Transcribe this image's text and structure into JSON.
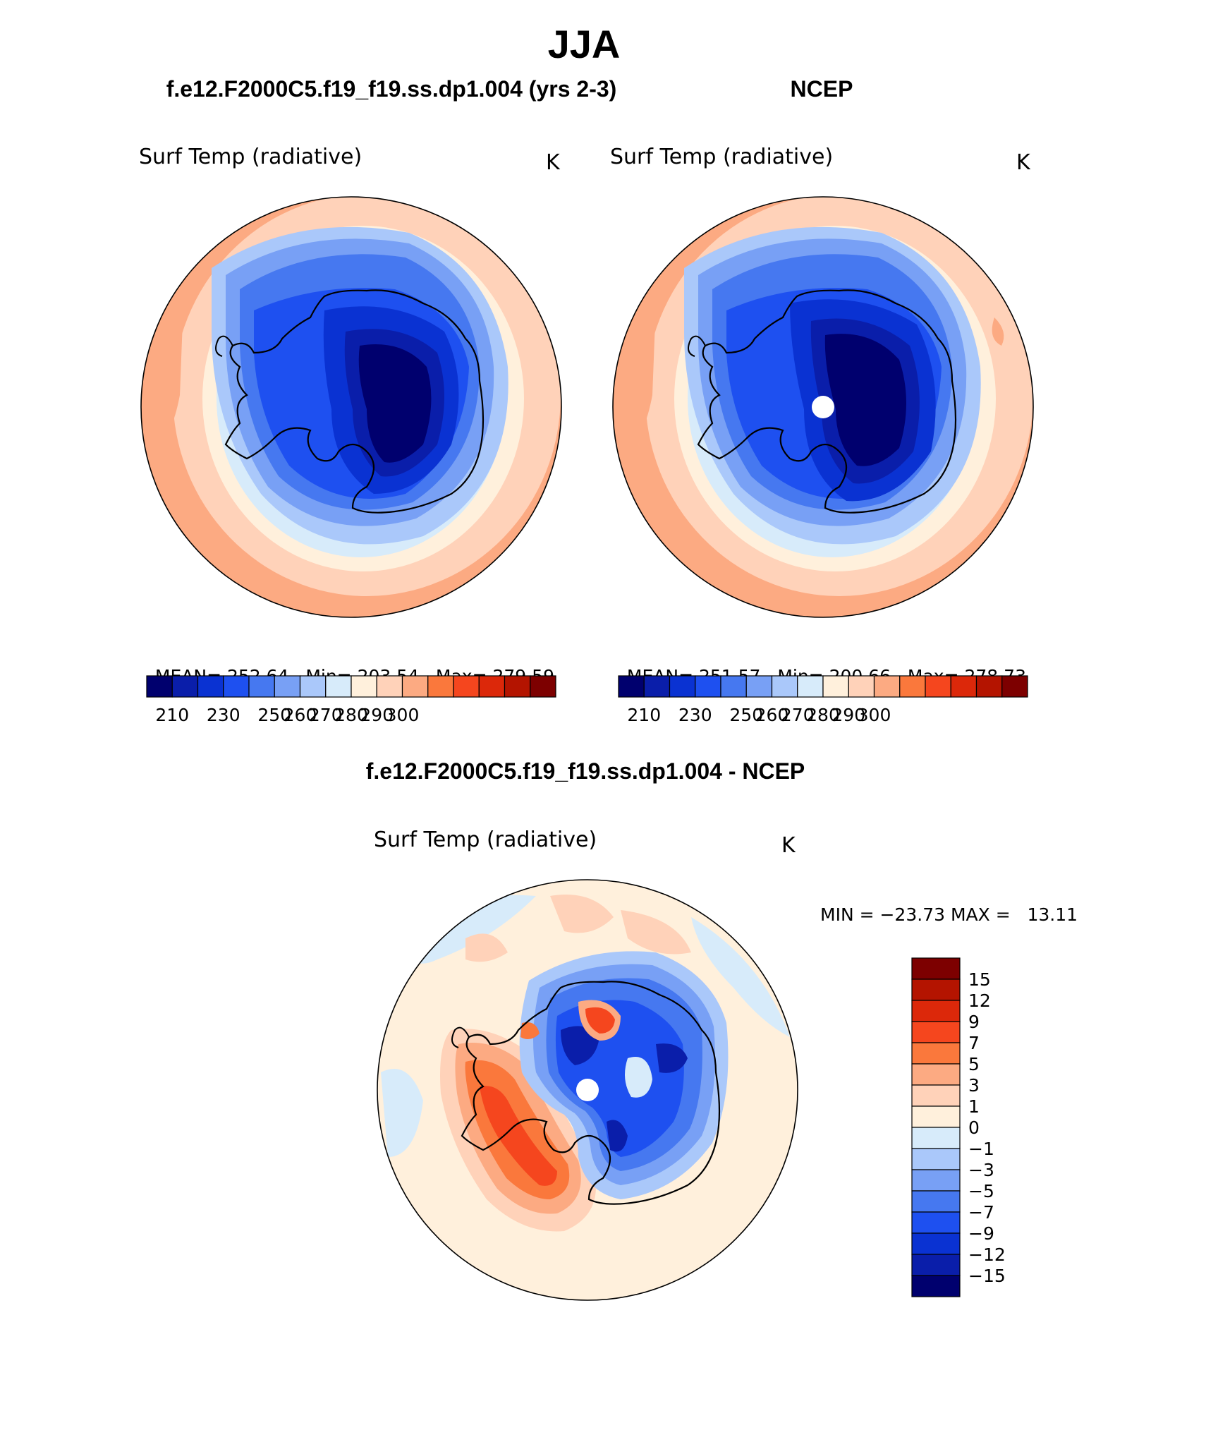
{
  "figure": {
    "title": "JJA"
  },
  "panels": [
    {
      "header": "f.e12.F2000C5.f19_f19.ss.dp1.004 (yrs 2-3)",
      "variable": "Surf Temp (radiative)",
      "units": "K",
      "stats": {
        "mean_label": "MEAN=",
        "mean": "252.64",
        "min_label": "Min=",
        "min": "203.54",
        "max_label": "Max=",
        "max": "279.59"
      }
    },
    {
      "header": "NCEP",
      "variable": "Surf Temp (radiative)",
      "units": "K",
      "stats": {
        "mean_label": "MEAN=",
        "mean": "251.57",
        "min_label": "Min=",
        "min": "200.66",
        "max_label": "Max=",
        "max": "278.73"
      }
    },
    {
      "header": "f.e12.F2000C5.f19_f19.ss.dp1.004 - NCEP",
      "variable": "Surf Temp (radiative)",
      "units": "K",
      "minmax": "MIN = −23.73 MAX =   13.11"
    }
  ],
  "colorbars": {
    "absolute": {
      "colors": [
        "#00006e",
        "#0a1eaa",
        "#0a32d2",
        "#1e50f0",
        "#4678f0",
        "#78a0f5",
        "#aac8fa",
        "#d7ebfa",
        "#fff0dc",
        "#ffd2b9",
        "#fcaa82",
        "#fa783c",
        "#f5461e",
        "#dc280a",
        "#b41400",
        "#7d0000"
      ],
      "tick_labels": [
        "210",
        "230",
        "250",
        "260",
        "270",
        "280",
        "290",
        "300"
      ]
    },
    "difference": {
      "colors": [
        "#00006e",
        "#0a1eaa",
        "#0a32d2",
        "#1e50f0",
        "#4678f0",
        "#78a0f5",
        "#aac8fa",
        "#d7ebfa",
        "#fff0dc",
        "#ffd2b9",
        "#fcaa82",
        "#fa783c",
        "#f5461e",
        "#dc280a",
        "#b41400",
        "#7d0000"
      ],
      "tick_labels": [
        "15",
        "12",
        "9",
        "7",
        "5",
        "3",
        "1",
        "0",
        "−1",
        "−3",
        "−5",
        "−7",
        "−9",
        "−12",
        "−15"
      ]
    }
  }
}
